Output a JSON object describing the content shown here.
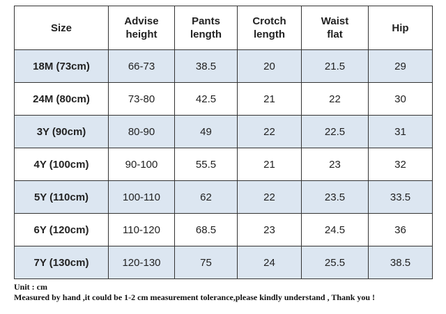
{
  "table": {
    "header": [
      [
        "Size"
      ],
      [
        "Advise",
        "height"
      ],
      [
        "Pants",
        "length"
      ],
      [
        "Crotch",
        "length"
      ],
      [
        "Waist",
        "flat"
      ],
      [
        "Hip"
      ]
    ],
    "rows": [
      [
        "18M (73cm)",
        "66-73",
        "38.5",
        "20",
        "21.5",
        "29"
      ],
      [
        "24M (80cm)",
        "73-80",
        "42.5",
        "21",
        "22",
        "30"
      ],
      [
        "3Y (90cm)",
        "80-90",
        "49",
        "22",
        "22.5",
        "31"
      ],
      [
        "4Y (100cm)",
        "90-100",
        "55.5",
        "21",
        "23",
        "32"
      ],
      [
        "5Y (110cm)",
        "100-110",
        "62",
        "22",
        "23.5",
        "33.5"
      ],
      [
        "6Y (120cm)",
        "110-120",
        "68.5",
        "23",
        "24.5",
        "36"
      ],
      [
        "7Y (130cm)",
        "120-130",
        "75",
        "24",
        "25.5",
        "38.5"
      ]
    ]
  },
  "notes": [
    "Unit : cm",
    "Measured by hand ,it could be 1-2 cm measurement tolerance,please kindly understand , Thank you !"
  ]
}
